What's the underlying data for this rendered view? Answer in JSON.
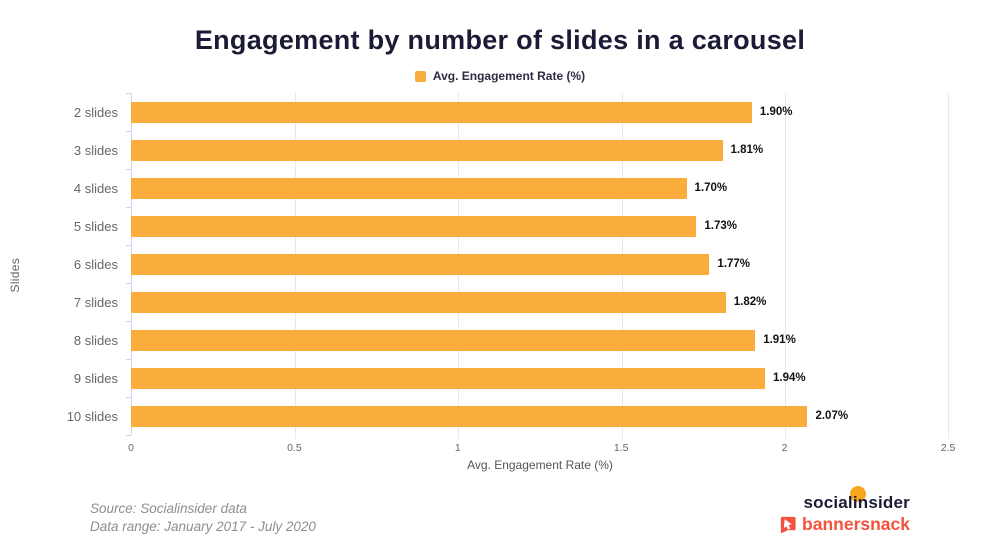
{
  "header": {
    "title": "Engagement by number of slides in a carousel"
  },
  "legend": {
    "label": "Avg. Engagement Rate (%)",
    "swatch_color": "#FAAC3D"
  },
  "chart_data": {
    "type": "bar",
    "orientation": "horizontal",
    "title": "Engagement by number of slides in a carousel",
    "series_name": "Avg. Engagement Rate (%)",
    "categories": [
      "2 slides",
      "3 slides",
      "4 slides",
      "5 slides",
      "6 slides",
      "7 slides",
      "8 slides",
      "9 slides",
      "10 slides"
    ],
    "values": [
      1.9,
      1.81,
      1.7,
      1.73,
      1.77,
      1.82,
      1.91,
      1.94,
      2.07
    ],
    "value_labels": [
      "1.90%",
      "1.81%",
      "1.70%",
      "1.73%",
      "1.77%",
      "1.82%",
      "1.91%",
      "1.94%",
      "2.07%"
    ],
    "xlabel": "Avg. Engagement Rate (%)",
    "ylabel": "Slides",
    "xlim": [
      0,
      2.5
    ],
    "xticks": [
      0,
      0.5,
      1,
      1.5,
      2,
      2.5
    ],
    "xtick_labels": [
      "0",
      "0.5",
      "1",
      "1.5",
      "2",
      "2.5"
    ],
    "grid": "vertical",
    "bar_color": "#FAAC3D",
    "legend_position": "top"
  },
  "footer": {
    "source_line1": "Source: Socialinsider data",
    "source_line2": "Data range: January 2017 - July 2020",
    "logos": {
      "socialinsider": "socialinsider",
      "bannersnack": "bannersnack"
    }
  },
  "colors": {
    "bar": "#FAAC3D",
    "title_text": "#1B1B35",
    "axis_text": "#666666",
    "value_label": "#111111",
    "axis_line": "#C9D6EC",
    "gridline": "#E9E9EC",
    "source_text": "#8E8E8E",
    "socialinsider_text": "#1B1B35",
    "socialinsider_dot": "#F6A71E",
    "bannersnack": "#F4523C"
  }
}
